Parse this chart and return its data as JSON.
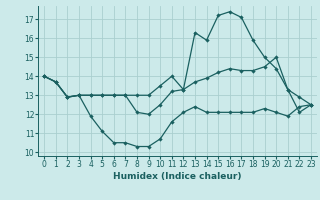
{
  "xlabel": "Humidex (Indice chaleur)",
  "background_color": "#cceaea",
  "grid_color": "#aacfcf",
  "line_color": "#1a6060",
  "xlim": [
    -0.5,
    23.5
  ],
  "ylim": [
    9.8,
    17.7
  ],
  "yticks": [
    10,
    11,
    12,
    13,
    14,
    15,
    16,
    17
  ],
  "xticks": [
    0,
    1,
    2,
    3,
    4,
    5,
    6,
    7,
    8,
    9,
    10,
    11,
    12,
    13,
    14,
    15,
    16,
    17,
    18,
    19,
    20,
    21,
    22,
    23
  ],
  "line1_y": [
    14.0,
    13.7,
    12.9,
    13.0,
    11.9,
    11.1,
    10.5,
    10.5,
    10.3,
    10.3,
    10.7,
    11.6,
    12.1,
    12.4,
    12.1,
    12.1,
    12.1,
    12.1,
    12.1,
    12.3,
    12.1,
    11.9,
    12.4,
    12.5
  ],
  "line2_y": [
    14.0,
    13.7,
    12.9,
    13.0,
    13.0,
    13.0,
    13.0,
    13.0,
    12.1,
    12.0,
    12.5,
    13.2,
    13.3,
    13.7,
    13.9,
    14.2,
    14.4,
    14.3,
    14.3,
    14.5,
    15.0,
    13.3,
    12.9,
    12.5
  ],
  "line3_y": [
    14.0,
    13.7,
    12.9,
    13.0,
    13.0,
    13.0,
    13.0,
    13.0,
    13.0,
    13.0,
    13.5,
    14.0,
    13.3,
    16.3,
    15.9,
    17.2,
    17.4,
    17.1,
    15.9,
    15.0,
    14.4,
    13.3,
    12.1,
    12.5
  ]
}
